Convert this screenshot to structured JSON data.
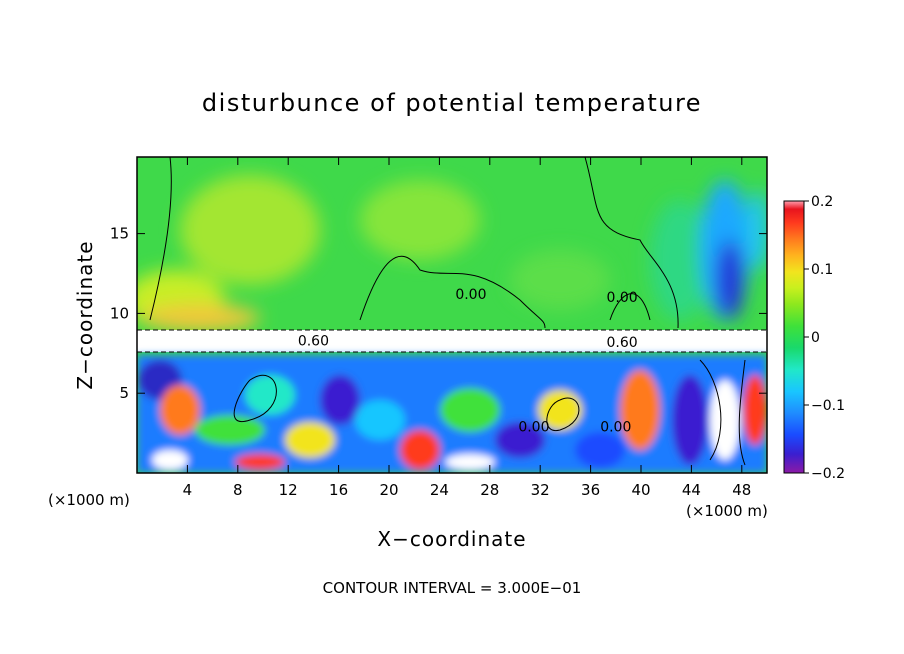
{
  "chart_data": {
    "type": "heatmap",
    "title": "disturbunce of potential temperature",
    "xlabel": "X−coordinate",
    "ylabel": "Z−coordinate",
    "x_unit_left": "(×1000 m)",
    "x_unit_right": "(×1000 m)",
    "footer": "CONTOUR INTERVAL = 3.000E−01",
    "xlim": [
      0,
      50
    ],
    "ylim": [
      0,
      19.8
    ],
    "x_ticks": [
      "4",
      "8",
      "12",
      "16",
      "20",
      "24",
      "28",
      "32",
      "36",
      "40",
      "44",
      "48"
    ],
    "y_ticks": [
      "5",
      "10",
      "15"
    ],
    "colorbar": {
      "min": -0.2,
      "max": 0.2,
      "tick_labels": [
        "0.2",
        "0.1",
        "0",
        "−0.1",
        "−0.2"
      ],
      "colors": [
        "#8c1aa6",
        "#3a1fd0",
        "#1a4bff",
        "#1f8cff",
        "#19c6ff",
        "#21e8c8",
        "#19d96b",
        "#3fe13a",
        "#8de81e",
        "#c8f01e",
        "#f2e41e",
        "#ffb31e",
        "#ff7a1e",
        "#ff3a1e",
        "#e8141e",
        "#ff9eb0"
      ]
    },
    "contour_labels": [
      {
        "text": "0.00",
        "x": 26.5,
        "z": 10.9
      },
      {
        "text": "0.00",
        "x": 38.5,
        "z": 10.7
      },
      {
        "text": "0.60",
        "x": 14,
        "z": 8.0
      },
      {
        "text": "0.60",
        "x": 38.5,
        "z": 7.9
      },
      {
        "text": "0.00",
        "x": 31.5,
        "z": 2.6
      },
      {
        "text": "0.00",
        "x": 38,
        "z": 2.6
      }
    ]
  }
}
